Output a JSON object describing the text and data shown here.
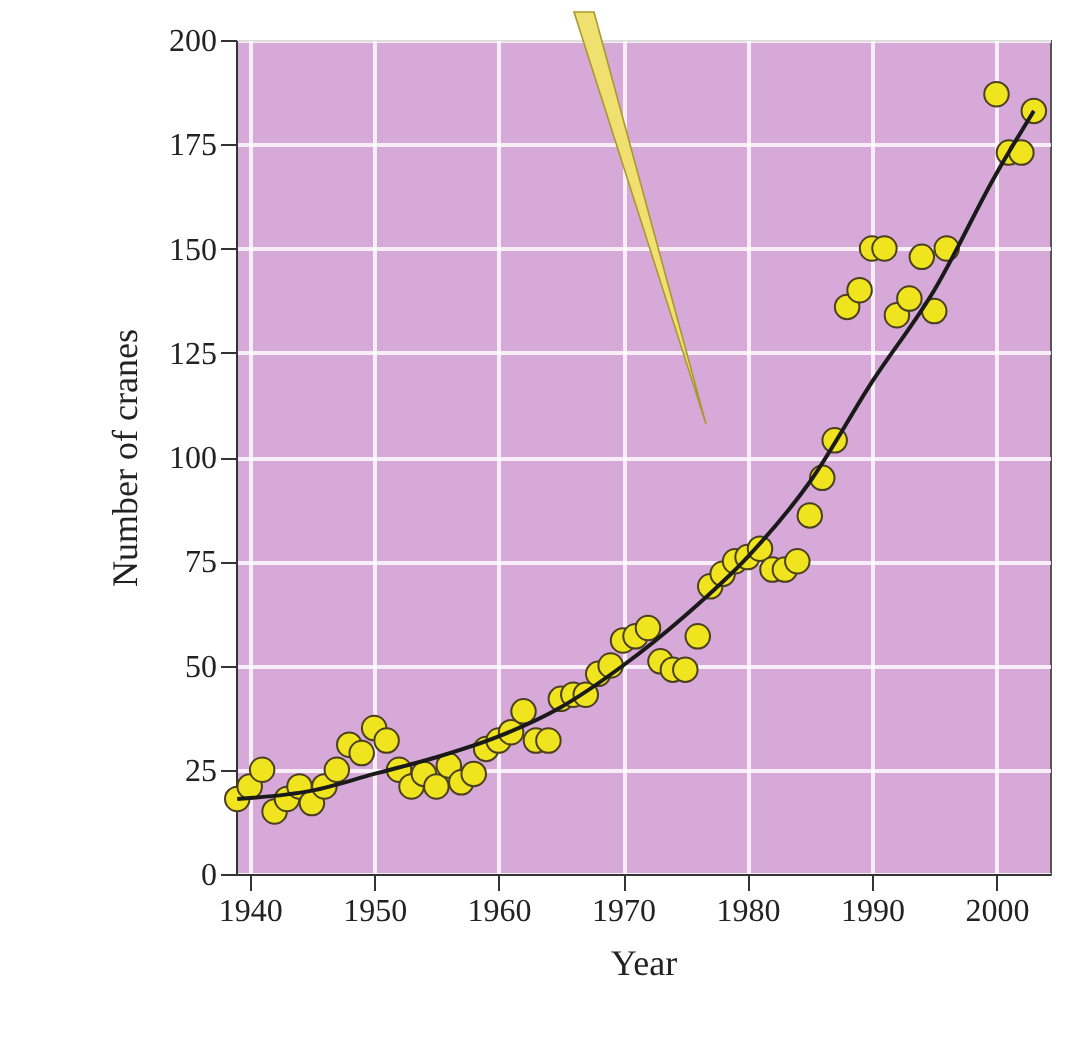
{
  "chart_data": {
    "type": "scatter",
    "xlabel": "Year",
    "ylabel": "Number of cranes",
    "xlim": [
      1938.9,
      2004.3
    ],
    "ylim": [
      0,
      200
    ],
    "xticks": [
      1940,
      1950,
      1960,
      1970,
      1980,
      1990,
      2000
    ],
    "yticks": [
      0,
      25,
      50,
      75,
      100,
      125,
      150,
      175,
      200
    ],
    "grid": true,
    "marker": "circle",
    "series": [
      {
        "color": "#f0e41e",
        "x": [
          1939,
          1940,
          1941,
          1942,
          1943,
          1944,
          1945,
          1946,
          1947,
          1948,
          1949,
          1950,
          1951,
          1952,
          1953,
          1954,
          1955,
          1956,
          1957,
          1958,
          1959,
          1960,
          1961,
          1962,
          1963,
          1964,
          1965,
          1966,
          1967,
          1968,
          1969,
          1970,
          1971,
          1972,
          1973,
          1974,
          1975,
          1976,
          1977,
          1978,
          1979,
          1980,
          1981,
          1982,
          1983,
          1984,
          1985,
          1986,
          1987,
          1988,
          1989,
          1990,
          1991,
          1992,
          1993,
          1994,
          1995,
          1996,
          2000,
          2001,
          2002,
          2003
        ],
        "values": [
          18,
          21,
          25,
          15,
          18,
          21,
          17,
          21,
          25,
          31,
          29,
          35,
          32,
          25,
          21,
          24,
          21,
          26,
          22,
          24,
          30,
          32,
          34,
          39,
          32,
          32,
          42,
          43,
          43,
          48,
          50,
          56,
          57,
          59,
          51,
          49,
          49,
          57,
          69,
          72,
          75,
          76,
          78,
          73,
          73,
          75,
          86,
          95,
          104,
          136,
          140,
          150,
          150,
          134,
          138,
          148,
          135,
          150,
          187,
          173,
          173,
          183
        ]
      },
      {
        "type": "line",
        "color": "#1a1a1a",
        "marker": "none",
        "x": [
          1939,
          1945,
          1950,
          1955,
          1960,
          1965,
          1970,
          1975,
          1980,
          1985,
          1990,
          1995,
          2000,
          2003
        ],
        "values": [
          18,
          20,
          24,
          28,
          33,
          40,
          50,
          62,
          76,
          94,
          118,
          140,
          168,
          183
        ]
      }
    ]
  }
}
